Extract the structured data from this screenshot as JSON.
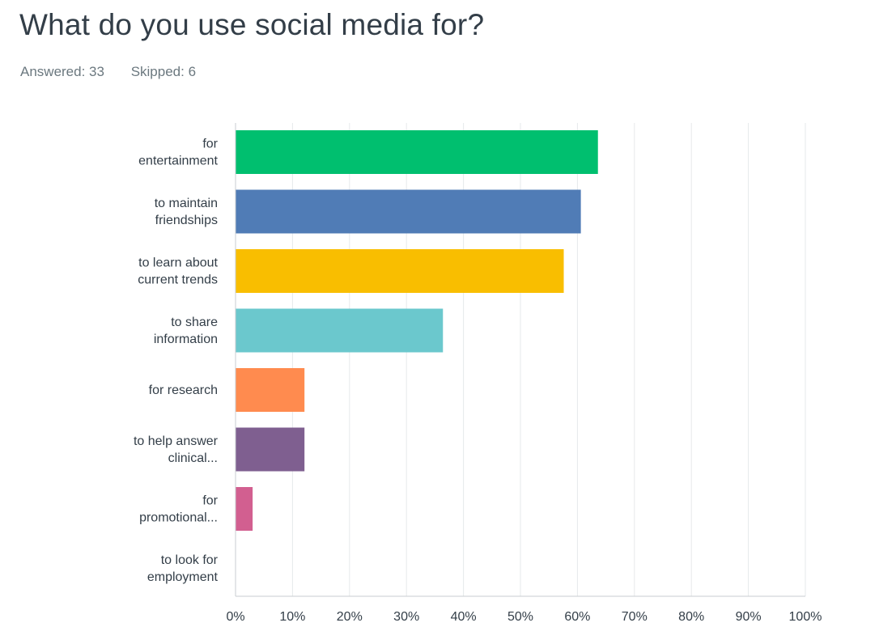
{
  "header": {
    "title": "What do you use social media for?",
    "answered": "Answered: 33",
    "skipped": "Skipped: 6"
  },
  "chart_data": {
    "type": "bar",
    "orientation": "horizontal",
    "categories": [
      [
        "for",
        "entertainment"
      ],
      [
        "to maintain",
        "friendships"
      ],
      [
        "to learn about",
        "current trends"
      ],
      [
        "to share",
        "information"
      ],
      [
        "for research"
      ],
      [
        "to help answer",
        "clinical..."
      ],
      [
        "for",
        "promotional..."
      ],
      [
        "to look for",
        "employment"
      ]
    ],
    "values": [
      63.6,
      60.6,
      57.6,
      36.4,
      12.1,
      12.1,
      3.0,
      0
    ],
    "colors": [
      "#00bf6f",
      "#507cb6",
      "#f9be00",
      "#6bc8cd",
      "#ff8b4f",
      "#7f5f90",
      "#d25f90",
      "#c0c0c0"
    ],
    "xlim": [
      0,
      100
    ],
    "ticks": [
      "0%",
      "10%",
      "20%",
      "30%",
      "40%",
      "50%",
      "60%",
      "70%",
      "80%",
      "90%",
      "100%"
    ],
    "grid": true,
    "title": "",
    "xlabel": "",
    "ylabel": ""
  }
}
